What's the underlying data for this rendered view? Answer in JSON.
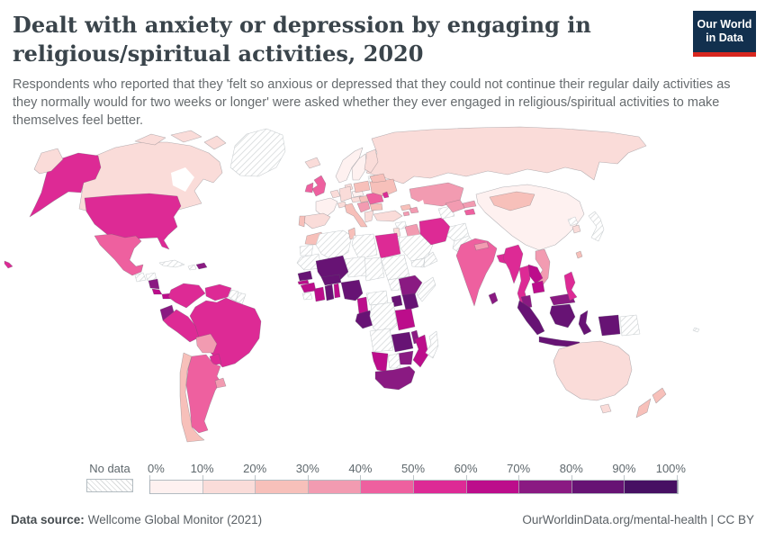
{
  "header": {
    "title": "Dealt with anxiety or depression by engaging in religious/spiritual activities, 2020",
    "subtitle": "Respondents who reported that they 'felt so anxious or depressed that they could not continue their regular daily activities as they normally would for two weeks or longer' were asked whether they ever engaged in religious/spiritual activities to make themselves feel better.",
    "logo": {
      "line1": "Our World",
      "line2": "in Data",
      "navy": "#12304e",
      "red": "#d8271f"
    }
  },
  "legend": {
    "no_data_label": "No data",
    "tick_labels": [
      "0%",
      "10%",
      "20%",
      "30%",
      "40%",
      "50%",
      "60%",
      "70%",
      "80%",
      "90%",
      "100%"
    ],
    "colors": [
      "#fef1f0",
      "#fadcd9",
      "#f7c0ba",
      "#f29bb1",
      "#ee609f",
      "#dd2a95",
      "#bc0d8b",
      "#8a1a82",
      "#671374",
      "#471063"
    ],
    "no_data_hatch_color": "#d9dbdc"
  },
  "footer": {
    "source_label": "Data source:",
    "source_value": "Wellcome Global Monitor (2021)",
    "right_text": "OurWorldinData.org/mental-health | CC BY"
  },
  "chart_data": {
    "type": "heatmap",
    "subtype": "world-choropleth",
    "title": "Dealt with anxiety or depression by engaging in religious/spiritual activities",
    "year": 2020,
    "unit": "%",
    "range": [
      0,
      100
    ],
    "legend_position": "bottom",
    "entities": {
      "United States": 55,
      "Canada": 15,
      "Greenland": null,
      "Mexico": 45,
      "Guatemala": null,
      "Honduras": null,
      "Nicaragua": 75,
      "Costa Rica": 65,
      "Panama": 65,
      "Cuba": null,
      "Haiti": null,
      "Dominican Republic": 72,
      "Colombia": 58,
      "Venezuela": 58,
      "Guyana": null,
      "Suriname": null,
      "Ecuador": 75,
      "Peru": 58,
      "Brazil": 55,
      "Bolivia": 38,
      "Paraguay": 55,
      "Uruguay": 38,
      "Argentina": 42,
      "Chile": 25,
      "Iceland": 12,
      "Norway": 5,
      "Sweden": 4,
      "Finland": 12,
      "Denmark": 12,
      "United Kingdom": 42,
      "Ireland": 48,
      "Netherlands": 18,
      "Germany": 12,
      "France": 8,
      "Spain": 12,
      "Portugal": 25,
      "Switzerland": 10,
      "Italy": 25,
      "Czechia": 8,
      "Austria": 12,
      "Poland": 22,
      "Hungary": 22,
      "Serbia": 32,
      "Romania": 45,
      "Bulgaria": 28,
      "Greece": 12,
      "Ukraine": 22,
      "Belarus": 25,
      "Moldova": 50,
      "Baltic states": null,
      "Russia": 12,
      "Turkey": 12,
      "Georgia": 25,
      "Armenia": 32,
      "Azerbaijan": 30,
      "Syria": null,
      "Israel": 15,
      "Iraq": 32,
      "Saudi Arabia": null,
      "Yemen": null,
      "Oman": null,
      "Iran": 52,
      "Turkmenistan": null,
      "Uzbekistan": 35,
      "Kazakhstan": 32,
      "Kyrgyzstan": 35,
      "Tajikistan": 40,
      "Afghanistan": null,
      "Pakistan": null,
      "China": 8,
      "Mongolia": 25,
      "North Korea": null,
      "South Korea": 15,
      "Japan": null,
      "Taiwan": 28,
      "India": 42,
      "Nepal": 35,
      "Bangladesh": 55,
      "Sri Lanka": 75,
      "Myanmar": 55,
      "Thailand": 52,
      "Laos": 60,
      "Vietnam": 38,
      "Cambodia": 62,
      "Malaysia": 70,
      "Indonesia": 82,
      "Philippines": 55,
      "Papua New Guinea": null,
      "Australia": 12,
      "New Zealand": 22,
      "Fiji": null,
      "Morocco": 25,
      "Western Sahara": null,
      "Mauritania": null,
      "Algeria": null,
      "Tunisia": 28,
      "Libya": null,
      "Egypt": 52,
      "Sudan": null,
      "Chad": null,
      "Niger": null,
      "Mali": 85,
      "Senegal": 82,
      "Gambia": 62,
      "Guinea": 60,
      "Sierra Leone": null,
      "Ivory Coast": 62,
      "Ghana": 85,
      "Benin": 62,
      "Burkina Faso": 82,
      "Nigeria": 85,
      "Cameroon": 62,
      "Central African Republic": null,
      "South Sudan": null,
      "Ethiopia": 75,
      "Somalia": null,
      "Uganda": 80,
      "Kenya": 82,
      "Congo": 85,
      "Democratic Republic of Congo": null,
      "Tanzania": 62,
      "Angola": null,
      "Zambia": 80,
      "Malawi": 75,
      "Mozambique": 62,
      "Zimbabwe": 78,
      "Botswana": null,
      "Namibia": 62,
      "South Africa": 70,
      "Madagascar": null
    }
  }
}
